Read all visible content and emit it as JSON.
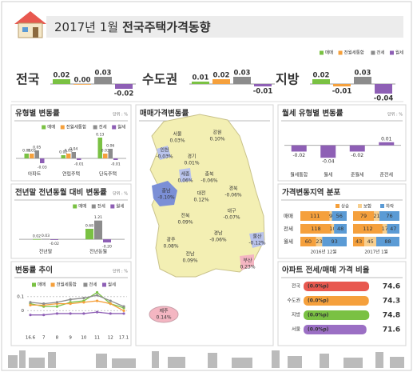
{
  "header": {
    "title_light": "2017년 1월",
    "title_bold": "전국주택가격동향"
  },
  "map": {
    "title": "매매가격변동률",
    "regions": [
      {
        "name": "서울",
        "value": "0.03%"
      },
      {
        "name": "강원",
        "value": "0.10%"
      },
      {
        "name": "인천",
        "value": "-0.03%"
      },
      {
        "name": "경기",
        "value": "0.01%"
      },
      {
        "name": "충북",
        "value": "-0.06%"
      },
      {
        "name": "세종",
        "value": "0.06%"
      },
      {
        "name": "충남",
        "value": "-0.10%"
      },
      {
        "name": "대전",
        "value": "0.12%"
      },
      {
        "name": "경북",
        "value": "-0.06%"
      },
      {
        "name": "전북",
        "value": "0.09%"
      },
      {
        "name": "대구",
        "value": "-0.07%"
      },
      {
        "name": "울산",
        "value": "-0.12%"
      },
      {
        "name": "경남",
        "value": "-0.06%"
      },
      {
        "name": "광주",
        "value": "0.08%"
      },
      {
        "name": "부산",
        "value": "0.23%"
      },
      {
        "name": "전남",
        "value": "0.09%"
      },
      {
        "name": "제주",
        "value": "0.14%"
      }
    ]
  },
  "chart_data": [
    {
      "type": "bar",
      "categories": [
        "전국",
        "수도권",
        "지방"
      ],
      "ylim": [
        -0.05,
        0.05
      ],
      "series": [
        {
          "name": "매매",
          "color": "#7ac143",
          "values": [
            0.02,
            0.01,
            0.02
          ]
        },
        {
          "name": "전월세통합",
          "color": "#f5a03c",
          "values": [
            0,
            0.02,
            -0.01
          ],
          "value_labels": [
            "0.00",
            "0.02",
            "-0.01"
          ]
        },
        {
          "name": "전세",
          "color": "#8c8c8c",
          "values": [
            0.03,
            0.03,
            0.03
          ]
        },
        {
          "name": "월세",
          "color": "#8e5fb5",
          "values": [
            -0.02,
            -0.01,
            -0.04
          ]
        }
      ]
    },
    {
      "type": "bar",
      "title": "유형별 변동률",
      "unit": "단위 : %",
      "categories": [
        "아파트",
        "연립주택",
        "단독주택"
      ],
      "ylim": [
        -0.05,
        0.15
      ],
      "series": [
        {
          "name": "매매",
          "color": "#7ac143",
          "values": [
            0.03,
            0.02,
            0.13
          ]
        },
        {
          "name": "전월세통합",
          "color": "#f5a03c",
          "values": [
            0.03,
            0.03,
            0.03
          ]
        },
        {
          "name": "전세",
          "color": "#8c8c8c",
          "values": [
            0.05,
            0.04,
            0.06
          ]
        },
        {
          "name": "월세",
          "color": "#8e5fb5",
          "values": [
            -0.03,
            -0.01,
            -0.01
          ]
        }
      ]
    },
    {
      "type": "bar",
      "title": "전년말 전년동월 대비 변동률",
      "unit": "단위 : %",
      "categories": [
        "전년말",
        "전년동월"
      ],
      "ylim": [
        -0.3,
        1.4
      ],
      "series": [
        {
          "name": "매매",
          "color": "#7ac143",
          "values": [
            0.02,
            0.68
          ]
        },
        {
          "name": "전세",
          "color": "#8c8c8c",
          "values": [
            0.03,
            1.21
          ]
        },
        {
          "name": "월세",
          "color": "#8e5fb5",
          "values": [
            -0.02,
            -0.2
          ],
          "value_labels": [
            "-0.02",
            "-0.20"
          ]
        }
      ]
    },
    {
      "type": "line",
      "title": "변동률 추이",
      "unit": "단위 : %",
      "categories": [
        "16.6",
        "7",
        "8",
        "9",
        "10",
        "11",
        "12",
        "17.1"
      ],
      "ylim": [
        -0.1,
        0.15
      ],
      "yticks": [
        0.1,
        0
      ],
      "series": [
        {
          "name": "매매",
          "color": "#7ac143",
          "values": [
            0.05,
            0.03,
            0.03,
            0.06,
            0.07,
            0.13,
            0.05,
            0.02
          ]
        },
        {
          "name": "전월세통합",
          "color": "#f5a03c",
          "values": [
            0.04,
            0.04,
            0.05,
            0.05,
            0.06,
            0.07,
            0.05,
            0
          ]
        },
        {
          "name": "전세",
          "color": "#8c8c8c",
          "values": [
            0.06,
            0.05,
            0.06,
            0.08,
            0.09,
            0.11,
            0.07,
            0.03
          ]
        },
        {
          "name": "월세",
          "color": "#8e5fb5",
          "values": [
            -0.03,
            -0.03,
            -0.02,
            -0.02,
            -0.02,
            -0.01,
            -0.02,
            -0.02
          ]
        }
      ]
    },
    {
      "type": "bar",
      "title": "월세 유형별 변동률",
      "unit": "단위 : %",
      "categories": [
        "월세통합",
        "월세",
        "준월세",
        "준전세"
      ],
      "ylim": [
        -0.06,
        0.03
      ],
      "color": "#8e5fb5",
      "values": [
        -0.02,
        -0.04,
        -0.02,
        0.01
      ]
    },
    {
      "type": "bar",
      "orientation": "horizontal",
      "stacked": true,
      "title": "가격변동지역 분포",
      "categories": [
        "매매",
        "전세",
        "월세"
      ],
      "periods": [
        "2016년 12월",
        "2017년 1월"
      ],
      "xlim": [
        0,
        176
      ],
      "series": [
        {
          "name": "상승",
          "color": "#f5a03c",
          "values": [
            [
              111,
              118,
              60
            ],
            [
              79,
              112,
              43
            ]
          ]
        },
        {
          "name": "보합",
          "color": "#f7cf8f",
          "values": [
            [
              9,
              10,
              23
            ],
            [
              21,
              17,
              45
            ]
          ]
        },
        {
          "name": "하락",
          "color": "#5b9bd5",
          "values": [
            [
              56,
              48,
              93
            ],
            [
              76,
              47,
              88
            ]
          ]
        }
      ]
    },
    {
      "type": "bar",
      "orientation": "horizontal",
      "title": "아파트 전세/매매 가격 비율",
      "categories": [
        "전국",
        "수도권",
        "지방",
        "서울"
      ],
      "xlim": [
        0,
        80
      ],
      "values": [
        74.6,
        74.3,
        74.8,
        71.6
      ],
      "colors": [
        "#e8584f",
        "#f5a03c",
        "#7ac143",
        "#9b6fc4"
      ],
      "change_labels": [
        "(0.0%p)",
        "(0.0%p)",
        "(0.0%p)",
        "(0.0%p)"
      ]
    }
  ]
}
